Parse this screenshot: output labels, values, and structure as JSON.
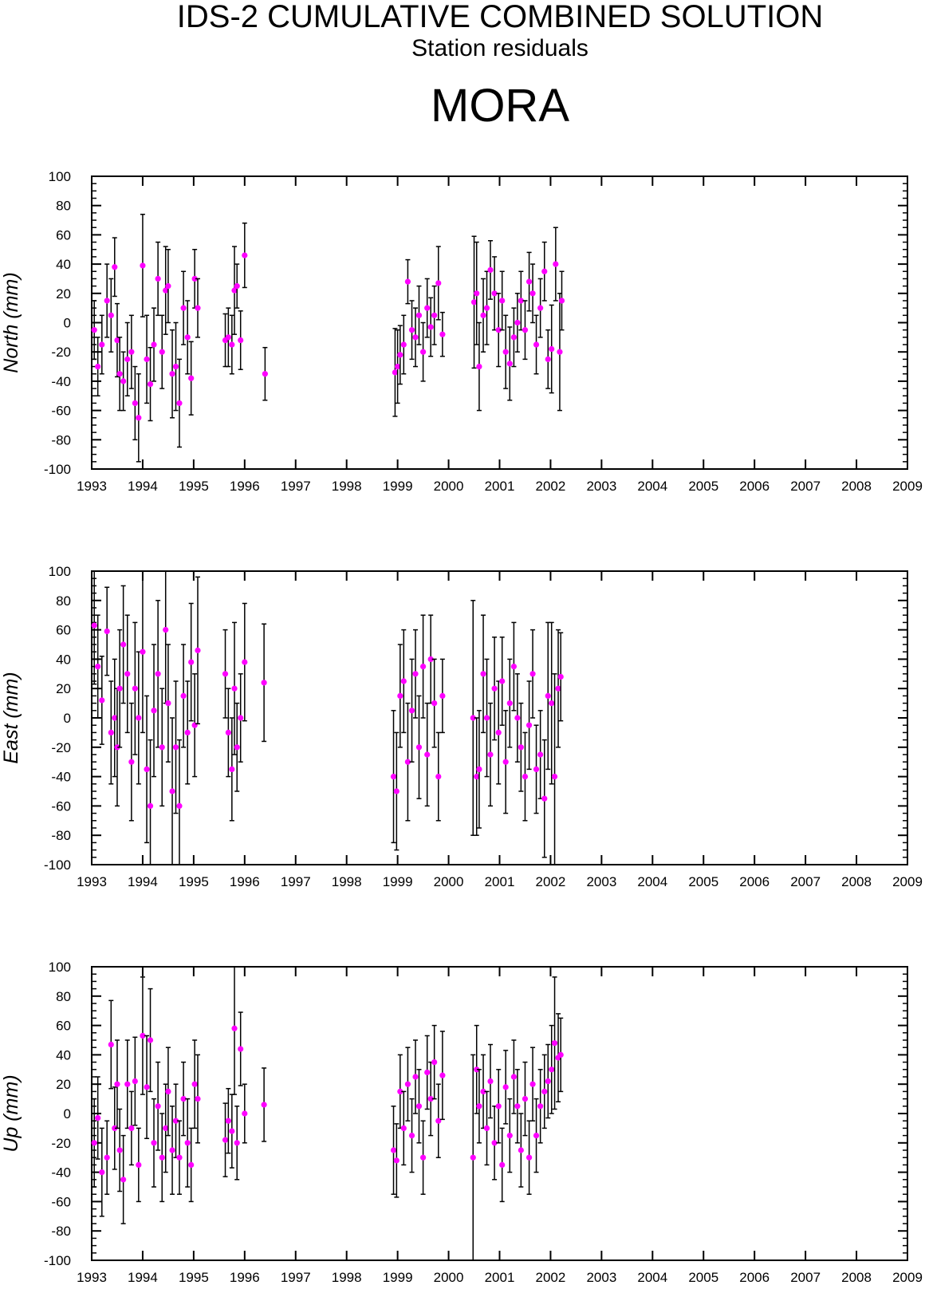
{
  "header": {
    "title": "IDS-2 CUMULATIVE COMBINED SOLUTION",
    "subtitle": "Station residuals",
    "station": "MORA"
  },
  "colors": {
    "point": "#ff00ff",
    "errorbar": "#000000",
    "axis": "#000000"
  },
  "chart_data": [
    {
      "type": "scatter",
      "ylabel": "North (mm)",
      "xlim": [
        1993,
        2009
      ],
      "ylim": [
        -100,
        100
      ],
      "xticks": [
        1993,
        1994,
        1995,
        1996,
        1997,
        1998,
        1999,
        2000,
        2001,
        2002,
        2003,
        2004,
        2005,
        2006,
        2007,
        2008,
        2009
      ],
      "yticks": [
        -100,
        -80,
        -60,
        -40,
        -20,
        0,
        20,
        40,
        60,
        80,
        100
      ],
      "error_bars": true,
      "series": [
        {
          "x": [
            1993.05,
            1993.12,
            1993.2,
            1993.3,
            1993.38,
            1993.45,
            1993.5,
            1993.55,
            1993.62,
            1993.7,
            1993.78,
            1993.85,
            1993.92,
            1994.0,
            1994.08,
            1994.15,
            1994.22,
            1994.3,
            1994.38,
            1994.45,
            1994.5,
            1994.58,
            1994.65,
            1994.72,
            1994.8,
            1994.88,
            1994.95,
            1995.02,
            1995.08,
            1995.62,
            1995.68,
            1995.75,
            1995.8,
            1995.85,
            1995.92,
            1996.0,
            1996.4,
            1998.95,
            1999.0,
            1999.05,
            1999.12,
            1999.2,
            1999.28,
            1999.35,
            1999.42,
            1999.5,
            1999.58,
            1999.65,
            1999.72,
            1999.8,
            1999.88,
            2000.5,
            2000.55,
            2000.6,
            2000.68,
            2000.75,
            2000.82,
            2000.9,
            2000.98,
            2001.05,
            2001.12,
            2001.2,
            2001.28,
            2001.35,
            2001.42,
            2001.5,
            2001.58,
            2001.65,
            2001.72,
            2001.8,
            2001.88,
            2001.95,
            2002.02,
            2002.1,
            2002.18,
            2002.22
          ],
          "y": [
            -5,
            -30,
            -15,
            15,
            5,
            38,
            -12,
            -35,
            -40,
            -25,
            -20,
            -55,
            -65,
            39,
            -25,
            -42,
            -15,
            30,
            -20,
            22,
            25,
            -35,
            -30,
            -55,
            10,
            -10,
            -38,
            30,
            10,
            -12,
            -10,
            -15,
            22,
            25,
            -12,
            46,
            -35,
            -34,
            -30,
            -22,
            -15,
            28,
            -5,
            -10,
            5,
            -20,
            10,
            -3,
            5,
            27,
            -8,
            14,
            20,
            -30,
            5,
            10,
            36,
            20,
            -5,
            15,
            -20,
            -28,
            -10,
            0,
            15,
            -5,
            28,
            20,
            -15,
            10,
            35,
            -25,
            -18,
            40,
            -20,
            15
          ],
          "err": [
            20,
            20,
            20,
            25,
            25,
            20,
            25,
            25,
            20,
            25,
            25,
            25,
            30,
            35,
            30,
            25,
            25,
            25,
            25,
            30,
            25,
            30,
            30,
            30,
            25,
            25,
            25,
            20,
            20,
            18,
            20,
            20,
            30,
            15,
            20,
            22,
            18,
            30,
            25,
            20,
            20,
            15,
            20,
            20,
            20,
            20,
            20,
            20,
            20,
            25,
            15,
            45,
            35,
            30,
            25,
            25,
            20,
            25,
            25,
            20,
            25,
            25,
            20,
            20,
            20,
            20,
            20,
            20,
            20,
            20,
            20,
            20,
            30,
            25,
            40,
            20
          ]
        }
      ]
    },
    {
      "type": "scatter",
      "ylabel": "East (mm)",
      "xlim": [
        1993,
        2009
      ],
      "ylim": [
        -100,
        100
      ],
      "xticks": [
        1993,
        1994,
        1995,
        1996,
        1997,
        1998,
        1999,
        2000,
        2001,
        2002,
        2003,
        2004,
        2005,
        2006,
        2007,
        2008,
        2009
      ],
      "yticks": [
        -100,
        -80,
        -60,
        -40,
        -20,
        0,
        20,
        40,
        60,
        80,
        100
      ],
      "error_bars": true,
      "series": [
        {
          "x": [
            1993.05,
            1993.12,
            1993.2,
            1993.3,
            1993.38,
            1993.45,
            1993.5,
            1993.55,
            1993.62,
            1993.7,
            1993.78,
            1993.85,
            1993.92,
            1994.0,
            1994.08,
            1994.15,
            1994.22,
            1994.3,
            1994.38,
            1994.45,
            1994.5,
            1994.58,
            1994.65,
            1994.72,
            1994.8,
            1994.88,
            1994.95,
            1995.02,
            1995.08,
            1995.62,
            1995.68,
            1995.75,
            1995.8,
            1995.85,
            1995.92,
            1996.0,
            1996.38,
            1998.92,
            1998.98,
            1999.05,
            1999.12,
            1999.2,
            1999.28,
            1999.35,
            1999.42,
            1999.5,
            1999.58,
            1999.65,
            1999.72,
            1999.8,
            1999.88,
            2000.48,
            2000.55,
            2000.6,
            2000.68,
            2000.75,
            2000.82,
            2000.9,
            2000.98,
            2001.05,
            2001.12,
            2001.2,
            2001.28,
            2001.35,
            2001.42,
            2001.5,
            2001.58,
            2001.65,
            2001.72,
            2001.8,
            2001.88,
            2001.95,
            2002.02,
            2002.08,
            2002.15,
            2002.2
          ],
          "y": [
            63,
            35,
            12,
            59,
            -10,
            0,
            -20,
            20,
            50,
            30,
            -30,
            20,
            0,
            45,
            -35,
            -60,
            5,
            30,
            -20,
            60,
            10,
            -50,
            -20,
            -60,
            15,
            -10,
            38,
            -5,
            46,
            30,
            -10,
            -35,
            20,
            -20,
            0,
            38,
            24,
            -40,
            -50,
            15,
            25,
            -30,
            5,
            30,
            -20,
            35,
            -25,
            40,
            10,
            -40,
            15,
            0,
            -40,
            -35,
            30,
            0,
            -25,
            20,
            -10,
            25,
            -30,
            10,
            35,
            0,
            -20,
            -40,
            -5,
            30,
            -35,
            -25,
            -55,
            15,
            10,
            -40,
            20,
            28
          ],
          "err": [
            40,
            35,
            30,
            30,
            35,
            40,
            40,
            40,
            40,
            40,
            40,
            45,
            45,
            55,
            50,
            45,
            45,
            50,
            40,
            50,
            40,
            50,
            45,
            45,
            35,
            35,
            40,
            35,
            50,
            30,
            30,
            35,
            45,
            30,
            30,
            40,
            40,
            45,
            40,
            35,
            35,
            40,
            35,
            30,
            35,
            35,
            35,
            30,
            30,
            30,
            25,
            80,
            40,
            40,
            40,
            40,
            35,
            35,
            35,
            30,
            35,
            30,
            30,
            30,
            30,
            30,
            30,
            30,
            30,
            30,
            40,
            50,
            55,
            70,
            40,
            30
          ]
        }
      ]
    },
    {
      "type": "scatter",
      "ylabel": "Up (mm)",
      "xlim": [
        1993,
        2009
      ],
      "ylim": [
        -100,
        100
      ],
      "xticks": [
        1993,
        1994,
        1995,
        1996,
        1997,
        1998,
        1999,
        2000,
        2001,
        2002,
        2003,
        2004,
        2005,
        2006,
        2007,
        2008,
        2009
      ],
      "yticks": [
        -100,
        -80,
        -60,
        -40,
        -20,
        0,
        20,
        40,
        60,
        80,
        100
      ],
      "error_bars": true,
      "series": [
        {
          "x": [
            1993.05,
            1993.12,
            1993.2,
            1993.3,
            1993.38,
            1993.45,
            1993.5,
            1993.55,
            1993.62,
            1993.7,
            1993.78,
            1993.85,
            1993.92,
            1994.0,
            1994.08,
            1994.15,
            1994.22,
            1994.3,
            1994.38,
            1994.45,
            1994.5,
            1994.58,
            1994.65,
            1994.72,
            1994.8,
            1994.88,
            1994.95,
            1995.02,
            1995.08,
            1995.62,
            1995.68,
            1995.75,
            1995.8,
            1995.85,
            1995.92,
            1996.0,
            1996.38,
            1998.92,
            1998.98,
            1999.05,
            1999.12,
            1999.2,
            1999.28,
            1999.35,
            1999.42,
            1999.5,
            1999.58,
            1999.65,
            1999.72,
            1999.8,
            1999.88,
            2000.48,
            2000.55,
            2000.6,
            2000.68,
            2000.75,
            2000.82,
            2000.9,
            2000.98,
            2001.05,
            2001.12,
            2001.2,
            2001.28,
            2001.35,
            2001.42,
            2001.5,
            2001.58,
            2001.65,
            2001.72,
            2001.8,
            2001.88,
            2001.95,
            2002.02,
            2002.08,
            2002.15,
            2002.2
          ],
          "y": [
            -20,
            -3,
            -40,
            -30,
            47,
            -10,
            20,
            -25,
            -45,
            20,
            -10,
            22,
            -35,
            53,
            18,
            50,
            -20,
            5,
            -30,
            -10,
            15,
            -25,
            -5,
            -30,
            10,
            -20,
            -35,
            20,
            10,
            -18,
            -5,
            -12,
            58,
            -20,
            44,
            0,
            6,
            -25,
            -32,
            15,
            -10,
            20,
            -15,
            25,
            5,
            -30,
            28,
            10,
            35,
            -5,
            26,
            -30,
            30,
            5,
            15,
            -10,
            22,
            -20,
            5,
            -35,
            18,
            -15,
            25,
            5,
            -25,
            10,
            -30,
            20,
            -15,
            5,
            15,
            22,
            30,
            48,
            38,
            40
          ],
          "err": [
            30,
            28,
            30,
            25,
            30,
            28,
            30,
            28,
            30,
            30,
            25,
            30,
            25,
            40,
            35,
            35,
            30,
            30,
            30,
            30,
            30,
            30,
            25,
            25,
            25,
            30,
            25,
            30,
            30,
            25,
            22,
            25,
            45,
            25,
            25,
            20,
            25,
            30,
            25,
            25,
            25,
            25,
            25,
            25,
            25,
            25,
            25,
            25,
            25,
            25,
            30,
            70,
            30,
            25,
            25,
            25,
            25,
            25,
            25,
            25,
            25,
            25,
            25,
            25,
            25,
            25,
            25,
            25,
            25,
            25,
            25,
            25,
            30,
            45,
            30,
            25
          ]
        }
      ]
    }
  ]
}
